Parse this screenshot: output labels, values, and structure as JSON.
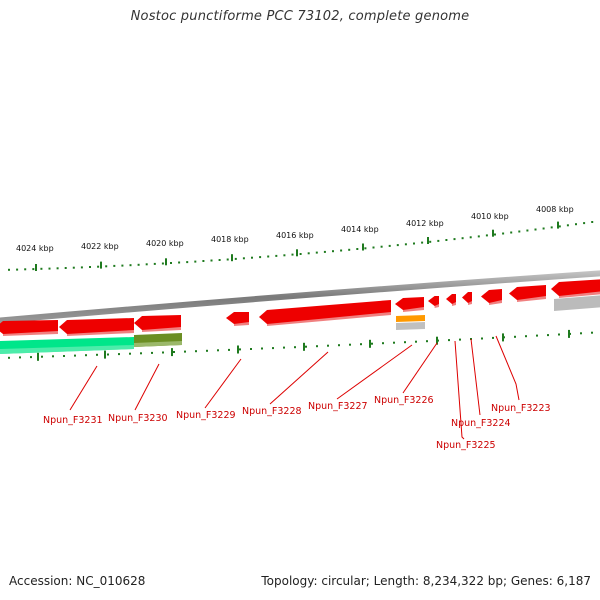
{
  "title": "Nostoc punctiforme PCC 73102, complete genome",
  "footer": {
    "accession": "Accession: NC_010628",
    "summary": "Topology: circular; Length: 8,234,322 bp; Genes: 6,187"
  },
  "scale_labels": [
    "4024 kbp",
    "4022 kbp",
    "4020 kbp",
    "4018 kbp",
    "4016 kbp",
    "4014 kbp",
    "4012 kbp",
    "4010 kbp",
    "4008 kbp"
  ],
  "gene_labels": [
    "Npun_F3231",
    "Npun_F3230",
    "Npun_F3229",
    "Npun_F3228",
    "Npun_F3227",
    "Npun_F3226",
    "Npun_F3225",
    "Npun_F3224",
    "Npun_F3223"
  ],
  "colors": {
    "cds": "#ee0000",
    "cds_shade": "#f08080",
    "tick": "#1e7a1e",
    "backbone": "#888888",
    "label_line": "#dd0000",
    "feature_green": "#00e68a",
    "feature_olive": "#6b8e23",
    "feature_orange": "#ff9900",
    "feature_gray": "#bbbbbb"
  }
}
